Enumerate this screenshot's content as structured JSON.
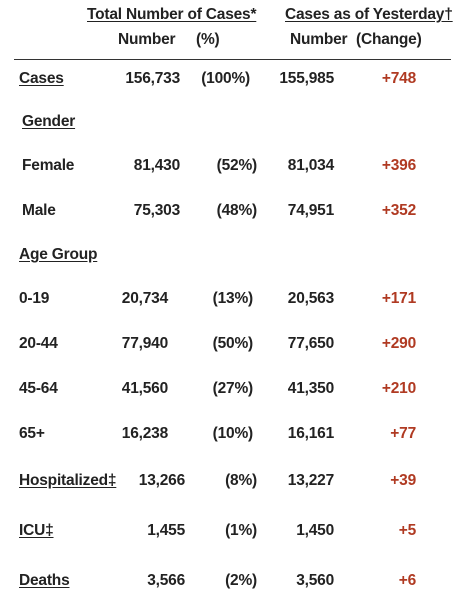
{
  "header": {
    "total_title": "Total Number of Cases*",
    "yesterday_title": "Cases as of Yesterday†",
    "number_label": "Number",
    "pct_label": "(%)",
    "yesterday_number_label": "Number",
    "change_label": "(Change)"
  },
  "sections": {
    "gender": "Gender",
    "age_group": "Age Group"
  },
  "rows": [
    {
      "label": "Cases",
      "number": "156,733",
      "pct": "(100%)",
      "yesterday": "155,985",
      "change": "+748"
    },
    {
      "label": "Female",
      "number": "81,430",
      "pct": "(52%)",
      "yesterday": "81,034",
      "change": "+396"
    },
    {
      "label": "Male",
      "number": "75,303",
      "pct": "(48%)",
      "yesterday": "74,951",
      "change": "+352"
    },
    {
      "label": "0-19",
      "number": "20,734",
      "pct": "(13%)",
      "yesterday": "20,563",
      "change": "+171"
    },
    {
      "label": "20-44",
      "number": "77,940",
      "pct": "(50%)",
      "yesterday": "77,650",
      "change": "+290"
    },
    {
      "label": "45-64",
      "number": "41,560",
      "pct": "(27%)",
      "yesterday": "41,350",
      "change": "+210"
    },
    {
      "label": "65+",
      "number": "16,238",
      "pct": "(10%)",
      "yesterday": "16,161",
      "change": "+77"
    },
    {
      "label": "Hospitalized‡",
      "number": "13,266",
      "pct": "(8%)",
      "yesterday": "13,227",
      "change": "+39"
    },
    {
      "label": "ICU‡",
      "number": "1,455",
      "pct": "(1%)",
      "yesterday": "1,450",
      "change": "+5"
    },
    {
      "label": "Deaths",
      "number": "3,566",
      "pct": "(2%)",
      "yesterday": "3,560",
      "change": "+6"
    }
  ],
  "colors": {
    "text": "#222222",
    "change": "#b03a22"
  }
}
